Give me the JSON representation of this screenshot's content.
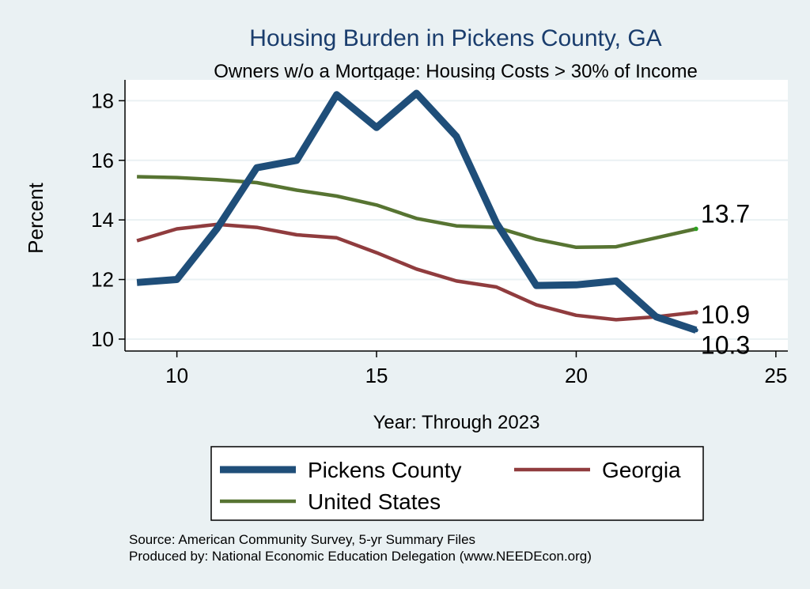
{
  "chart_data": {
    "type": "line",
    "title": "Housing Burden in Pickens County, GA",
    "subtitle": "Owners w/o a Mortgage: Housing Costs > 30% of Income",
    "xlabel": "Year: Through 2023",
    "ylabel": "Percent",
    "xlim": [
      8.7,
      25.3
    ],
    "ylim": [
      9.6,
      18.7
    ],
    "x_ticks": [
      10,
      15,
      20,
      25
    ],
    "y_ticks": [
      10,
      12,
      14,
      16,
      18
    ],
    "grid": true,
    "legend_position": "bottom",
    "x": [
      9,
      10,
      11,
      12,
      13,
      14,
      15,
      16,
      17,
      18,
      19,
      20,
      21,
      22,
      23
    ],
    "series": [
      {
        "name": "Pickens County",
        "color": "#1f4e79",
        "values": [
          11.9,
          12.0,
          13.7,
          15.75,
          16.0,
          18.2,
          17.1,
          18.25,
          16.8,
          13.9,
          11.8,
          11.82,
          11.95,
          10.75,
          10.3
        ],
        "end_label": "10.3"
      },
      {
        "name": "Georgia",
        "color": "#903c3e",
        "values": [
          13.3,
          13.7,
          13.85,
          13.75,
          13.5,
          13.4,
          12.9,
          12.35,
          11.95,
          11.75,
          11.15,
          10.8,
          10.65,
          10.75,
          10.9
        ],
        "end_label": "10.9"
      },
      {
        "name": "United States",
        "color": "#577432",
        "values": [
          15.45,
          15.42,
          15.35,
          15.25,
          15.0,
          14.8,
          14.5,
          14.05,
          13.8,
          13.75,
          13.35,
          13.08,
          13.1,
          13.4,
          13.7
        ],
        "end_label": "13.7"
      }
    ],
    "notes": [
      "Source: American Community Survey, 5-yr Summary Files",
      "Produced by: National Economic Education Delegation (www.NEEDEcon.org)"
    ]
  }
}
